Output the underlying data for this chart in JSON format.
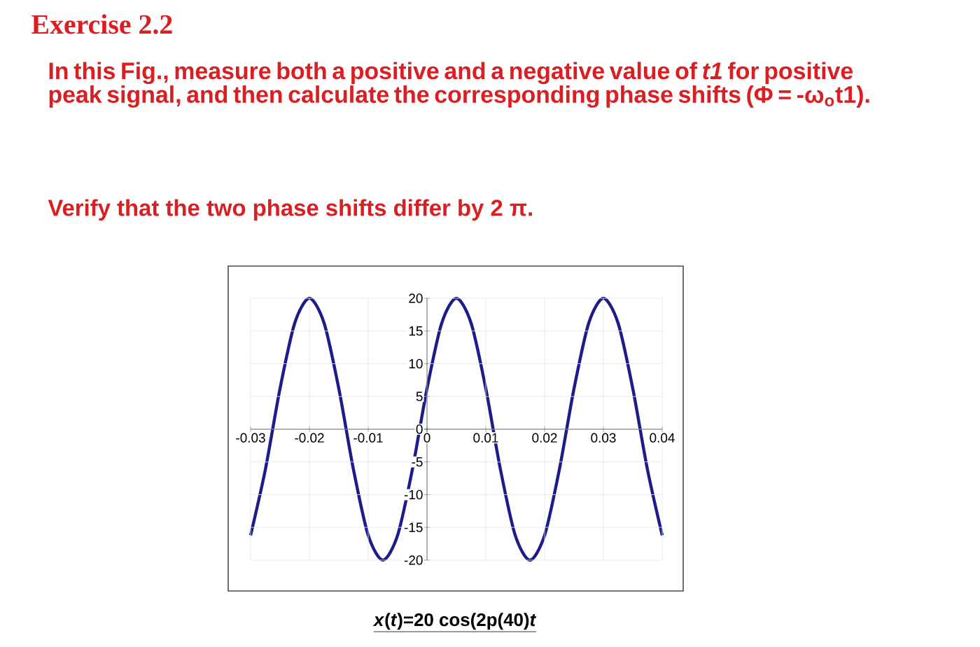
{
  "chart_data": {
    "type": "line",
    "title": "Exercise 2.2",
    "subtitle": "In this Fig., measure both a positive and a negative value of *t1* for positive peak signal, and then calculate the corresponding phase shifts (Φ = -ω$_{o}$t1).",
    "annotations": [
      "Verify that the two phase shifts differ by 2 π."
    ],
    "xlabel": "*x*(*t*)=20 cos(2p(40)*t*",
    "x": [
      -0.03,
      -0.0275,
      -0.025,
      -0.0225,
      -0.02,
      -0.0175,
      -0.015,
      -0.0125,
      -0.01,
      -0.0075,
      -0.005,
      -0.0025,
      0,
      0.0025,
      0.005,
      0.0075,
      0.01,
      0.0125,
      0.015,
      0.0175,
      0.02,
      0.0225,
      0.025,
      0.0275,
      0.03,
      0.0325,
      0.035,
      0.0375,
      0.04
    ],
    "values": [
      -16.2,
      -6.2,
      6.2,
      16.2,
      20,
      16.2,
      6.2,
      -6.2,
      -16.2,
      -20,
      -16.2,
      -6.2,
      6.2,
      16.2,
      20,
      16.2,
      6.2,
      -6.2,
      -16.2,
      -20,
      -16.2,
      -6.2,
      6.2,
      16.2,
      20,
      16.2,
      6.2,
      -6.2,
      -16.2
    ],
    "color": "#1c1c8a",
    "marker": "none",
    "xlim": [
      -0.03,
      0.04
    ],
    "ylim": [
      -20,
      20
    ],
    "xticks": [
      -0.03,
      -0.02,
      -0.01,
      0,
      0.01,
      0.02,
      0.03,
      0.04
    ],
    "yticks": [
      -20,
      -15,
      -10,
      -5,
      0,
      5,
      10,
      15,
      20
    ],
    "grid": true
  }
}
